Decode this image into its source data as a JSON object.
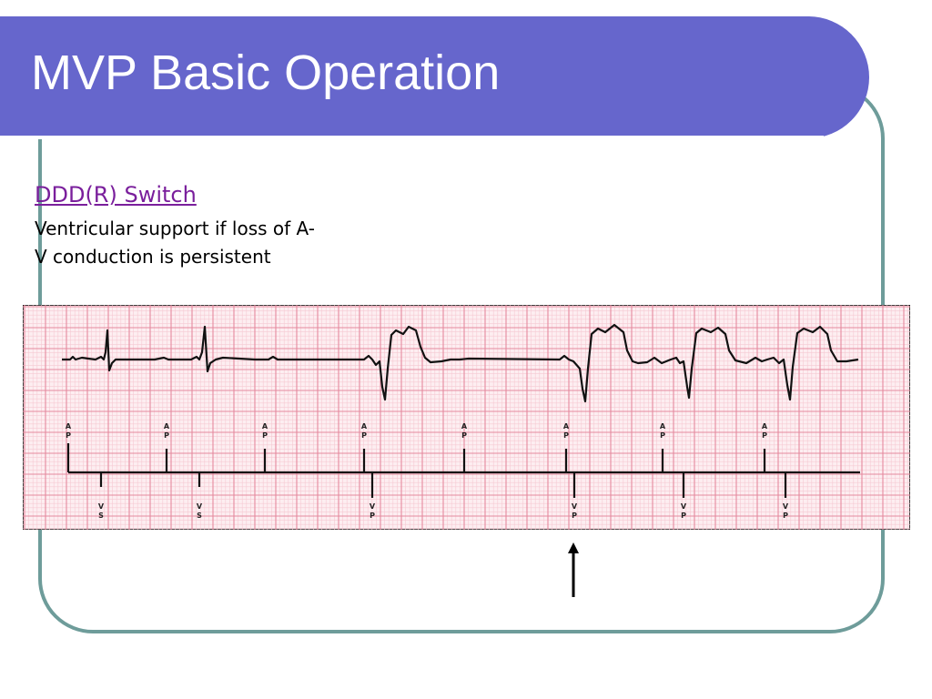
{
  "slide": {
    "title": "MVP Basic Operation",
    "link_text": "DDD(R) Switch",
    "description": "Ventricular support if loss of A-V conduction is persistent"
  },
  "strip": {
    "atrial_markers": [
      {
        "l1": "A",
        "l2": "P"
      },
      {
        "l1": "A",
        "l2": "P"
      },
      {
        "l1": "A",
        "l2": "P"
      },
      {
        "l1": "A",
        "l2": "P"
      },
      {
        "l1": "A",
        "l2": "P"
      },
      {
        "l1": "A",
        "l2": "P"
      },
      {
        "l1": "A",
        "l2": "P"
      },
      {
        "l1": "A",
        "l2": "P"
      }
    ],
    "ventricular_markers": [
      {
        "l1": "V",
        "l2": "S"
      },
      {
        "l1": "V",
        "l2": "S"
      },
      {
        "l1": "V",
        "l2": "P"
      },
      {
        "l1": "V",
        "l2": "P"
      },
      {
        "l1": "V",
        "l2": "P"
      },
      {
        "l1": "V",
        "l2": "P"
      }
    ]
  },
  "colors": {
    "title_bar": "#6666cc",
    "frame": "#6e9c9a",
    "link": "#7a1f9c",
    "grid_major": "#e58a9e",
    "grid_minor": "#f6c9d3",
    "paper": "#fdeef1"
  }
}
